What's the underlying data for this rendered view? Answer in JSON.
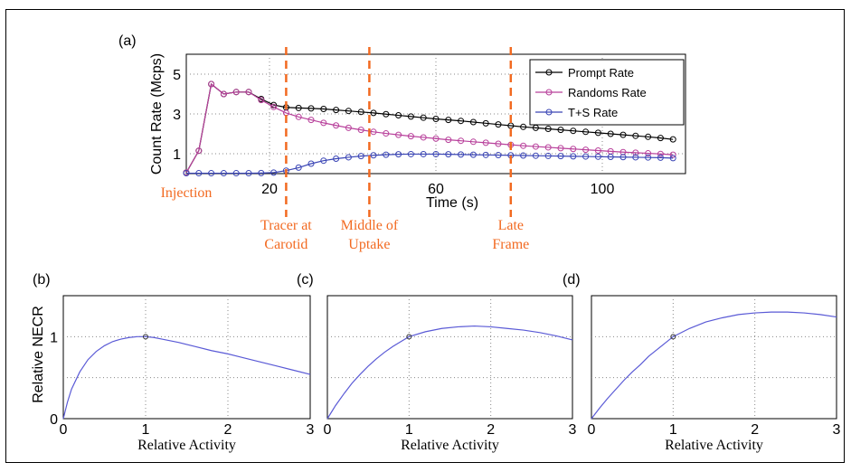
{
  "chart_data": [
    {
      "type": "line",
      "panel": "(a)",
      "xlabel": "Time (s)",
      "ylabel": "Count Rate (Mcps)",
      "xlim": [
        0,
        120
      ],
      "ylim": [
        0,
        6
      ],
      "xticks": [
        20,
        60,
        100
      ],
      "yticks": [
        1,
        3,
        5
      ],
      "grid": true,
      "legend_position": "top-right",
      "x": [
        0,
        3,
        6,
        9,
        12,
        15,
        18,
        21,
        24,
        27,
        30,
        33,
        36,
        39,
        42,
        45,
        48,
        51,
        54,
        57,
        60,
        63,
        66,
        69,
        72,
        75,
        78,
        81,
        84,
        87,
        90,
        93,
        96,
        99,
        102,
        105,
        108,
        111,
        114,
        117
      ],
      "series": [
        {
          "name": "Prompt Rate",
          "color": "#000000",
          "values": [
            0.05,
            1.15,
            4.5,
            4.0,
            4.1,
            4.1,
            3.75,
            3.45,
            3.33,
            3.3,
            3.28,
            3.25,
            3.2,
            3.15,
            3.1,
            3.05,
            2.99,
            2.93,
            2.87,
            2.81,
            2.75,
            2.7,
            2.65,
            2.59,
            2.53,
            2.47,
            2.41,
            2.35,
            2.3,
            2.25,
            2.2,
            2.15,
            2.1,
            2.05,
            2.0,
            1.95,
            1.9,
            1.85,
            1.79,
            1.72
          ]
        },
        {
          "name": "Randoms Rate",
          "color": "#b8409b",
          "values": [
            0.05,
            1.15,
            4.5,
            4.0,
            4.1,
            4.1,
            3.7,
            3.35,
            3.05,
            2.85,
            2.7,
            2.55,
            2.42,
            2.3,
            2.2,
            2.1,
            2.02,
            1.95,
            1.88,
            1.82,
            1.76,
            1.7,
            1.65,
            1.6,
            1.55,
            1.5,
            1.45,
            1.4,
            1.36,
            1.32,
            1.28,
            1.24,
            1.2,
            1.16,
            1.12,
            1.08,
            1.05,
            1.02,
            0.99,
            0.95
          ]
        },
        {
          "name": "T+S Rate",
          "color": "#3a45b5",
          "values": [
            0.02,
            0.02,
            0.02,
            0.02,
            0.02,
            0.02,
            0.03,
            0.05,
            0.15,
            0.3,
            0.5,
            0.65,
            0.75,
            0.82,
            0.88,
            0.92,
            0.95,
            0.97,
            0.98,
            0.98,
            0.98,
            0.97,
            0.96,
            0.95,
            0.94,
            0.93,
            0.92,
            0.91,
            0.9,
            0.89,
            0.88,
            0.87,
            0.86,
            0.85,
            0.84,
            0.83,
            0.82,
            0.81,
            0.8,
            0.78
          ]
        }
      ],
      "annotations": [
        {
          "text": "Injection",
          "x": 0,
          "line": false
        },
        {
          "text": [
            "Tracer at",
            "Carotid"
          ],
          "x": 24,
          "line": true
        },
        {
          "text": [
            "Middle of",
            "Uptake"
          ],
          "x": 44,
          "line": true
        },
        {
          "text": [
            "Late",
            "Frame"
          ],
          "x": 78,
          "line": true
        }
      ],
      "annotation_color": "#f26a21"
    },
    {
      "type": "line",
      "panel": "(b)",
      "xlabel": "Relative Activity",
      "ylabel": "Relative NECR",
      "xlim": [
        0,
        3
      ],
      "ylim": [
        0,
        1.5
      ],
      "xticks": [
        0,
        1,
        2,
        3
      ],
      "yticks": [
        0,
        1
      ],
      "grid": true,
      "marker_point": [
        1,
        1
      ],
      "x": [
        0,
        0.05,
        0.1,
        0.2,
        0.3,
        0.4,
        0.5,
        0.6,
        0.7,
        0.8,
        0.9,
        1.0,
        1.1,
        1.2,
        1.4,
        1.6,
        1.8,
        2.0,
        2.2,
        2.4,
        2.6,
        2.8,
        3.0
      ],
      "values": [
        0,
        0.2,
        0.36,
        0.57,
        0.72,
        0.82,
        0.89,
        0.94,
        0.97,
        0.99,
        1.0,
        1.0,
        0.99,
        0.97,
        0.93,
        0.88,
        0.83,
        0.79,
        0.74,
        0.69,
        0.64,
        0.59,
        0.54
      ],
      "color": "#5a5ad6"
    },
    {
      "type": "line",
      "panel": "(c)",
      "xlabel": "Relative Activity",
      "xlim": [
        0,
        3
      ],
      "ylim": [
        0,
        1.5
      ],
      "xticks": [
        0,
        1,
        2,
        3
      ],
      "grid": true,
      "marker_point": [
        1,
        1
      ],
      "x": [
        0,
        0.05,
        0.1,
        0.2,
        0.3,
        0.4,
        0.5,
        0.6,
        0.7,
        0.8,
        0.9,
        1.0,
        1.2,
        1.4,
        1.6,
        1.8,
        2.0,
        2.2,
        2.4,
        2.6,
        2.8,
        3.0
      ],
      "values": [
        0,
        0.08,
        0.16,
        0.3,
        0.43,
        0.54,
        0.64,
        0.73,
        0.81,
        0.88,
        0.94,
        1.0,
        1.06,
        1.1,
        1.12,
        1.13,
        1.12,
        1.1,
        1.08,
        1.05,
        1.01,
        0.96
      ],
      "color": "#5a5ad6"
    },
    {
      "type": "line",
      "panel": "(d)",
      "xlabel": "Relative Activity",
      "xlim": [
        0,
        3
      ],
      "ylim": [
        0,
        1.5
      ],
      "xticks": [
        0,
        1,
        2,
        3
      ],
      "grid": true,
      "marker_point": [
        1,
        1
      ],
      "x": [
        0,
        0.1,
        0.2,
        0.3,
        0.4,
        0.5,
        0.6,
        0.7,
        0.8,
        0.9,
        1.0,
        1.2,
        1.4,
        1.6,
        1.8,
        2.0,
        2.2,
        2.4,
        2.6,
        2.8,
        3.0
      ],
      "values": [
        0,
        0.13,
        0.25,
        0.36,
        0.47,
        0.57,
        0.66,
        0.76,
        0.84,
        0.92,
        1.0,
        1.1,
        1.18,
        1.23,
        1.27,
        1.29,
        1.3,
        1.3,
        1.29,
        1.27,
        1.24
      ],
      "color": "#5a5ad6"
    }
  ]
}
